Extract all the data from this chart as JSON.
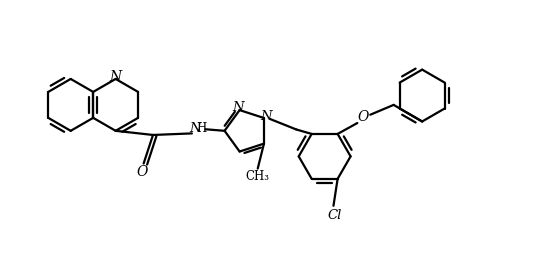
{
  "background_color": "#ffffff",
  "line_color": "#000000",
  "line_width": 1.6,
  "font_size": 8.5,
  "figsize": [
    5.46,
    2.72
  ],
  "dpi": 100,
  "xlim": [
    0,
    10.5
  ],
  "ylim": [
    0,
    5.0
  ]
}
